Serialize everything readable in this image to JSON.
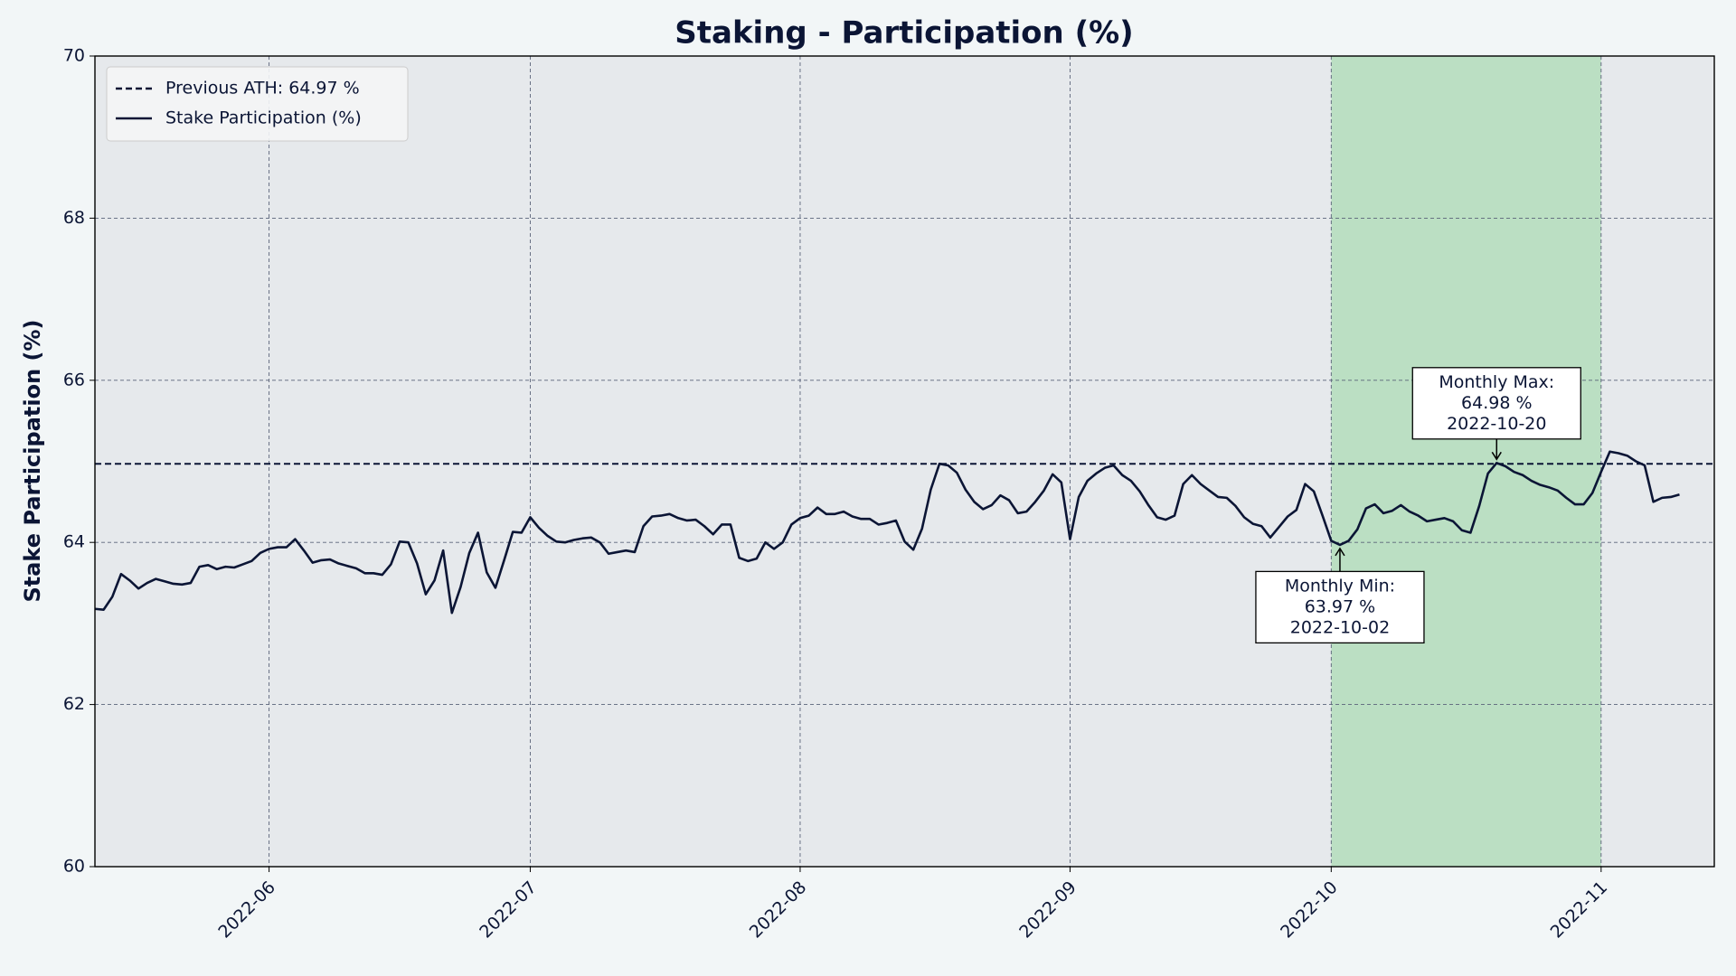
{
  "chart_data": {
    "type": "line",
    "title": "Staking - Participation (%)",
    "y_label": "Stake Participation (%)",
    "x": [
      "2022-05-12",
      "2022-05-13",
      "2022-05-14",
      "2022-05-15",
      "2022-05-16",
      "2022-05-17",
      "2022-05-18",
      "2022-05-19",
      "2022-05-20",
      "2022-05-21",
      "2022-05-22",
      "2022-05-23",
      "2022-05-24",
      "2022-05-25",
      "2022-05-26",
      "2022-05-27",
      "2022-05-28",
      "2022-05-29",
      "2022-05-30",
      "2022-05-31",
      "2022-06-01",
      "2022-06-02",
      "2022-06-03",
      "2022-06-04",
      "2022-06-05",
      "2022-06-06",
      "2022-06-07",
      "2022-06-08",
      "2022-06-09",
      "2022-06-10",
      "2022-06-11",
      "2022-06-12",
      "2022-06-13",
      "2022-06-14",
      "2022-06-15",
      "2022-06-16",
      "2022-06-17",
      "2022-06-18",
      "2022-06-19",
      "2022-06-20",
      "2022-06-21",
      "2022-06-22",
      "2022-06-23",
      "2022-06-24",
      "2022-06-25",
      "2022-06-26",
      "2022-06-27",
      "2022-06-28",
      "2022-06-29",
      "2022-06-30",
      "2022-07-01",
      "2022-07-02",
      "2022-07-03",
      "2022-07-04",
      "2022-07-05",
      "2022-07-06",
      "2022-07-07",
      "2022-07-08",
      "2022-07-09",
      "2022-07-10",
      "2022-07-11",
      "2022-07-12",
      "2022-07-13",
      "2022-07-14",
      "2022-07-15",
      "2022-07-16",
      "2022-07-17",
      "2022-07-18",
      "2022-07-19",
      "2022-07-20",
      "2022-07-21",
      "2022-07-22",
      "2022-07-23",
      "2022-07-24",
      "2022-07-25",
      "2022-07-26",
      "2022-07-27",
      "2022-07-28",
      "2022-07-29",
      "2022-07-30",
      "2022-07-31",
      "2022-08-01",
      "2022-08-02",
      "2022-08-03",
      "2022-08-04",
      "2022-08-05",
      "2022-08-06",
      "2022-08-07",
      "2022-08-08",
      "2022-08-09",
      "2022-08-10",
      "2022-08-11",
      "2022-08-12",
      "2022-08-13",
      "2022-08-14",
      "2022-08-15",
      "2022-08-16",
      "2022-08-17",
      "2022-08-18",
      "2022-08-19",
      "2022-08-20",
      "2022-08-21",
      "2022-08-22",
      "2022-08-23",
      "2022-08-24",
      "2022-08-25",
      "2022-08-26",
      "2022-08-27",
      "2022-08-28",
      "2022-08-29",
      "2022-08-30",
      "2022-08-31",
      "2022-09-01",
      "2022-09-02",
      "2022-09-03",
      "2022-09-04",
      "2022-09-05",
      "2022-09-06",
      "2022-09-07",
      "2022-09-08",
      "2022-09-09",
      "2022-09-10",
      "2022-09-11",
      "2022-09-12",
      "2022-09-13",
      "2022-09-14",
      "2022-09-15",
      "2022-09-16",
      "2022-09-17",
      "2022-09-18",
      "2022-09-19",
      "2022-09-20",
      "2022-09-21",
      "2022-09-22",
      "2022-09-23",
      "2022-09-24",
      "2022-09-25",
      "2022-09-26",
      "2022-09-27",
      "2022-09-28",
      "2022-09-29",
      "2022-09-30",
      "2022-10-01",
      "2022-10-02",
      "2022-10-03",
      "2022-10-04",
      "2022-10-05",
      "2022-10-06",
      "2022-10-07",
      "2022-10-08",
      "2022-10-09",
      "2022-10-10",
      "2022-10-11",
      "2022-10-12",
      "2022-10-13",
      "2022-10-14",
      "2022-10-15",
      "2022-10-16",
      "2022-10-17",
      "2022-10-18",
      "2022-10-19",
      "2022-10-20",
      "2022-10-21",
      "2022-10-22",
      "2022-10-23",
      "2022-10-24",
      "2022-10-25",
      "2022-10-26",
      "2022-10-27",
      "2022-10-28",
      "2022-10-29",
      "2022-10-30",
      "2022-10-31",
      "2022-11-01",
      "2022-11-02",
      "2022-11-03",
      "2022-11-04",
      "2022-11-05",
      "2022-11-06",
      "2022-11-07",
      "2022-11-08",
      "2022-11-09",
      "2022-11-10"
    ],
    "series": [
      {
        "name": "Stake Participation (%)",
        "color": "#0b1535",
        "values": [
          63.18,
          63.17,
          63.33,
          63.61,
          63.53,
          63.43,
          63.5,
          63.55,
          63.52,
          63.49,
          63.48,
          63.5,
          63.7,
          63.72,
          63.67,
          63.7,
          63.69,
          63.73,
          63.77,
          63.87,
          63.92,
          63.94,
          63.94,
          64.04,
          63.9,
          63.75,
          63.78,
          63.79,
          63.74,
          63.71,
          63.68,
          63.62,
          63.62,
          63.6,
          63.73,
          64.01,
          64.0,
          63.74,
          63.36,
          63.53,
          63.9,
          63.13,
          63.45,
          63.87,
          64.12,
          63.63,
          63.44,
          63.78,
          64.13,
          64.12,
          64.31,
          64.18,
          64.08,
          64.01,
          64.0,
          64.03,
          64.05,
          64.06,
          64.0,
          63.86,
          63.88,
          63.9,
          63.88,
          64.2,
          64.32,
          64.33,
          64.35,
          64.3,
          64.27,
          64.28,
          64.2,
          64.1,
          64.22,
          64.22,
          63.81,
          63.77,
          63.8,
          64.0,
          63.92,
          64.0,
          64.22,
          64.3,
          64.33,
          64.43,
          64.35,
          64.35,
          64.38,
          64.32,
          64.29,
          64.29,
          64.22,
          64.24,
          64.27,
          64.01,
          63.91,
          64.17,
          64.65,
          64.97,
          64.95,
          64.86,
          64.65,
          64.5,
          64.41,
          64.46,
          64.58,
          64.52,
          64.36,
          64.38,
          64.5,
          64.64,
          64.84,
          64.74,
          64.04,
          64.56,
          64.76,
          64.85,
          64.92,
          64.95,
          64.83,
          64.76,
          64.63,
          64.46,
          64.31,
          64.28,
          64.33,
          64.72,
          64.83,
          64.72,
          64.64,
          64.56,
          64.55,
          64.45,
          64.31,
          64.23,
          64.2,
          64.06,
          64.19,
          64.32,
          64.4,
          64.72,
          64.63,
          64.33,
          64.02,
          63.97,
          64.02,
          64.16,
          64.42,
          64.47,
          64.36,
          64.39,
          64.46,
          64.38,
          64.33,
          64.26,
          64.28,
          64.3,
          64.26,
          64.15,
          64.12,
          64.45,
          64.85,
          64.98,
          64.94,
          64.87,
          64.83,
          64.76,
          64.71,
          64.68,
          64.64,
          64.55,
          64.47,
          64.47,
          64.61,
          64.87,
          65.12,
          65.1,
          65.07,
          65.0,
          64.95,
          64.5,
          64.55,
          64.56,
          64.59
        ]
      }
    ],
    "hlines": [
      {
        "name": "Previous ATH: 64.97 %",
        "value": 64.97,
        "color": "#0b1535",
        "style": "dashed"
      }
    ],
    "highlight": {
      "start": "2022-10-01",
      "end": "2022-11-01",
      "color": "#bbdfc3"
    },
    "annotations": [
      {
        "lines": [
          "Monthly Max:",
          "64.98 %",
          "2022-10-20"
        ],
        "x": "2022-10-20",
        "y": 64.98,
        "position": "above"
      },
      {
        "lines": [
          "Monthly Min:",
          "63.97 %",
          "2022-10-02"
        ],
        "x": "2022-10-02",
        "y": 63.97,
        "position": "below"
      }
    ],
    "xlim": [
      "2022-05-12",
      "2022-11-14"
    ],
    "xticks": [
      {
        "value": "2022-06-01",
        "label": "2022-06"
      },
      {
        "value": "2022-07-01",
        "label": "2022-07"
      },
      {
        "value": "2022-08-01",
        "label": "2022-08"
      },
      {
        "value": "2022-09-01",
        "label": "2022-09"
      },
      {
        "value": "2022-10-01",
        "label": "2022-10"
      },
      {
        "value": "2022-11-01",
        "label": "2022-11"
      }
    ],
    "ylim": [
      60,
      70
    ],
    "yticks": [
      60,
      62,
      64,
      66,
      68,
      70
    ],
    "grid": true,
    "legend": "upper left"
  }
}
